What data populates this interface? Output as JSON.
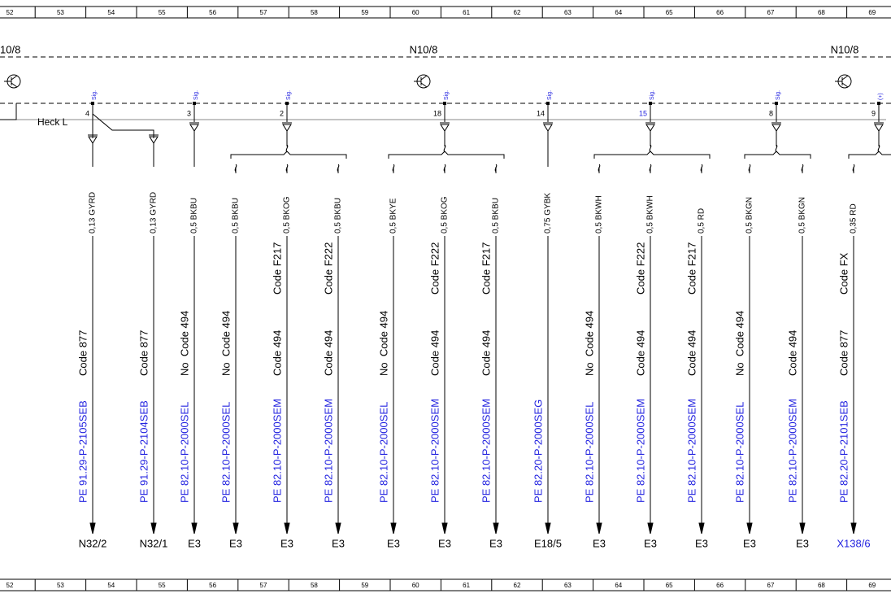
{
  "ruler": [
    52,
    53,
    54,
    55,
    56,
    57,
    58,
    59,
    60,
    61,
    62,
    63,
    64,
    65,
    66,
    67,
    68,
    69
  ],
  "modules": [
    "10/8",
    "N10/8",
    "N10/8"
  ],
  "harness": "Heck L",
  "pins": [
    {
      "number": "4",
      "label": "Sig."
    },
    {
      "number": "3",
      "label": "Sig."
    },
    {
      "number": "2",
      "label": "Sig."
    },
    {
      "number": "18",
      "label": "Sig."
    },
    {
      "number": "14",
      "label": "Sig."
    },
    {
      "number": "15",
      "label": "Sig."
    },
    {
      "number": "8",
      "label": "Sig."
    },
    {
      "number": "9",
      "label": "(+)"
    }
  ],
  "wires": [
    {
      "label": "0,13 GYRD",
      "code": "Code 877",
      "reference": "PE 91.29-P-2105SEB",
      "destination": "N32/2"
    },
    {
      "label": "0,13 GYRD",
      "code": "Code 877",
      "reference": "PE 91.29-P-2104SEB",
      "destination": "N32/1"
    },
    {
      "label": "0,5 BKBU",
      "code": "No  Code 494",
      "reference": "PE 82.10-P-2000SEL",
      "destination": "E3"
    },
    {
      "label": "0,5 BKBU",
      "code": "No  Code 494",
      "reference": "PE 82.10-P-2000SEL",
      "destination": "E3"
    },
    {
      "label": "0,5 BKOG",
      "code_option": "Code F217",
      "code": "Code 494",
      "reference": "PE 82.10-P-2000SEM",
      "destination": "E3"
    },
    {
      "label": "0,5 BKBU",
      "code_option": "Code F222",
      "code": "Code 494",
      "reference": "PE 82.10-P-2000SEM",
      "destination": "E3"
    },
    {
      "label": "0,5 BKYE",
      "code": "No  Code 494",
      "reference": "PE 82.10-P-2000SEL",
      "destination": "E3"
    },
    {
      "label": "0,5 BKOG",
      "code_option": "Code F222",
      "code": "Code 494",
      "reference": "PE 82.10-P-2000SEM",
      "destination": "E3"
    },
    {
      "label": "0,5 BKBU",
      "code_option": "Code F217",
      "code": "Code 494",
      "reference": "PE 82.10-P-2000SEM",
      "destination": "E3"
    },
    {
      "label": "0,75 GYBK",
      "reference": "PE 82.20-P-2000SEG",
      "destination": "E18/5"
    },
    {
      "label": "0,5 BKWH",
      "code": "No  Code 494",
      "reference": "PE 82.10-P-2000SEL",
      "destination": "E3"
    },
    {
      "label": "0,5 BKWH",
      "code_option": "Code F222",
      "code": "Code 494",
      "reference": "PE 82.10-P-2000SEM",
      "destination": "E3"
    },
    {
      "label": "0,5 RD",
      "code_option": "Code F217",
      "code": "Code 494",
      "reference": "PE 82.10-P-2000SEM",
      "destination": "E3"
    },
    {
      "label": "0,5 BKGN",
      "code": "No  Code 494",
      "reference": "PE 82.10-P-2000SEL",
      "destination": "E3"
    },
    {
      "label": "0,5 BKGN",
      "code": "Code 494",
      "reference": "PE 82.10-P-2000SEM",
      "destination": "E3"
    },
    {
      "label": "0,35 RD",
      "code_option": "Code FX",
      "code": "Code 877",
      "reference": "PE 82.20-P-2101SEB",
      "destination": "X138/6"
    }
  ]
}
